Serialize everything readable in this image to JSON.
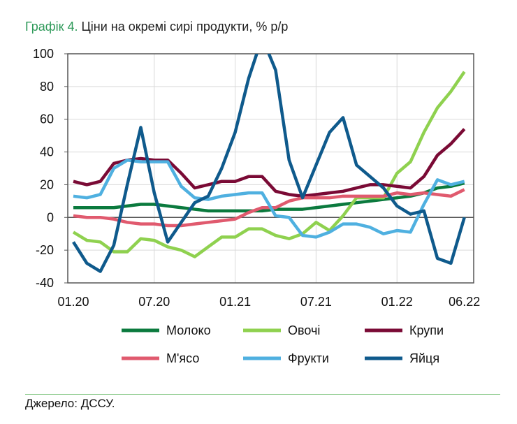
{
  "title": {
    "number": "Графік 4.",
    "text": " Ціни на окремі сирі продукти, % р/р"
  },
  "source": "Джерело: ДССУ.",
  "chart_data": {
    "type": "line",
    "title": "Ціни на окремі сирі продукти, % р/р",
    "x": [
      "01.20",
      "02.20",
      "03.20",
      "04.20",
      "05.20",
      "06.20",
      "07.20",
      "08.20",
      "09.20",
      "10.20",
      "11.20",
      "12.20",
      "01.21",
      "02.21",
      "03.21",
      "04.21",
      "05.21",
      "06.21",
      "07.21",
      "08.21",
      "09.21",
      "10.21",
      "11.21",
      "12.21",
      "01.22",
      "02.22",
      "03.22",
      "04.22",
      "05.22",
      "06.22"
    ],
    "xticks": [
      "01.20",
      "07.20",
      "01.21",
      "07.21",
      "01.22",
      "06.22"
    ],
    "yticks": [
      100,
      80,
      60,
      40,
      20,
      0,
      -20,
      -40
    ],
    "ylim": [
      -40,
      100
    ],
    "grid": true,
    "legend": "bottom",
    "series": [
      {
        "name": "Молоко",
        "color": "#0b7a3e",
        "values": [
          6,
          6,
          6,
          6,
          7,
          8,
          8,
          7,
          6,
          5,
          4,
          4,
          4,
          4,
          4,
          5,
          5,
          5,
          6,
          7,
          8,
          9,
          10,
          11,
          12,
          13,
          15,
          18,
          19,
          21
        ]
      },
      {
        "name": "Овочі",
        "color": "#8fd14f",
        "values": [
          -9,
          -14,
          -15,
          -21,
          -21,
          -13,
          -14,
          -18,
          -20,
          -24,
          -18,
          -12,
          -12,
          -7,
          -7,
          -11,
          -13,
          -10,
          -3,
          -8,
          1,
          12,
          12,
          12,
          27,
          34,
          52,
          67,
          77,
          89
        ]
      },
      {
        "name": "Крупи",
        "color": "#7a0a35",
        "values": [
          22,
          20,
          22,
          33,
          35,
          36,
          35,
          35,
          27,
          18,
          20,
          22,
          22,
          25,
          25,
          16,
          14,
          13,
          14,
          15,
          16,
          18,
          20,
          20,
          19,
          18,
          25,
          38,
          45,
          54
        ]
      },
      {
        "name": "М'ясо",
        "color": "#e05a6e",
        "values": [
          1,
          0,
          0,
          -1,
          -3,
          -4,
          -4,
          -5,
          -5,
          -4,
          -3,
          -2,
          -1,
          3,
          6,
          6,
          10,
          12,
          12,
          12,
          13,
          13,
          13,
          13,
          15,
          14,
          15,
          14,
          13,
          17
        ]
      },
      {
        "name": "Фрукти",
        "color": "#4fb0e0",
        "values": [
          13,
          12,
          14,
          30,
          35,
          34,
          34,
          34,
          19,
          12,
          11,
          13,
          14,
          15,
          15,
          1,
          0,
          -11,
          -12,
          -9,
          -4,
          -4,
          -6,
          -10,
          -8,
          -9,
          8,
          23,
          20,
          22
        ]
      },
      {
        "name": "Яйця",
        "color": "#0f5a8c",
        "values": [
          -15,
          -28,
          -33,
          -17,
          20,
          55,
          15,
          -15,
          -3,
          9,
          13,
          30,
          52,
          85,
          110,
          90,
          35,
          12,
          32,
          52,
          61,
          32,
          25,
          18,
          7,
          2,
          4,
          -25,
          -28,
          0
        ]
      }
    ]
  }
}
